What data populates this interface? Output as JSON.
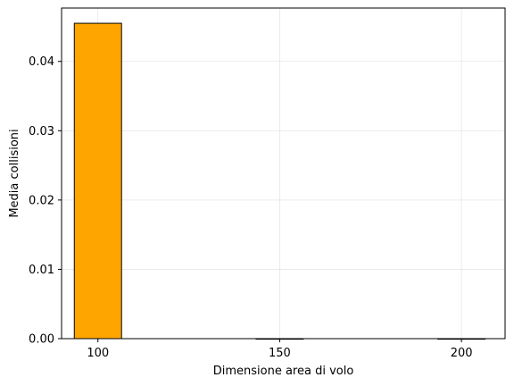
{
  "chart_data": {
    "type": "bar",
    "title": "",
    "xlabel": "Dimensione area di volo",
    "ylabel": "Media collisioni",
    "x": [
      100,
      150,
      200
    ],
    "values": [
      0.0455,
      0.0,
      0.0
    ],
    "bar_width": 13,
    "xlim": [
      90,
      212
    ],
    "ylim": [
      0,
      0.0477
    ],
    "xticks": [
      100,
      150,
      200
    ],
    "yticks": [
      0.0,
      0.01,
      0.02,
      0.03,
      0.04
    ],
    "ytick_labels": [
      "0.00",
      "0.01",
      "0.02",
      "0.03",
      "0.04"
    ],
    "grid": true,
    "bar_color": "#ffa500",
    "edge_color": "#000000"
  }
}
